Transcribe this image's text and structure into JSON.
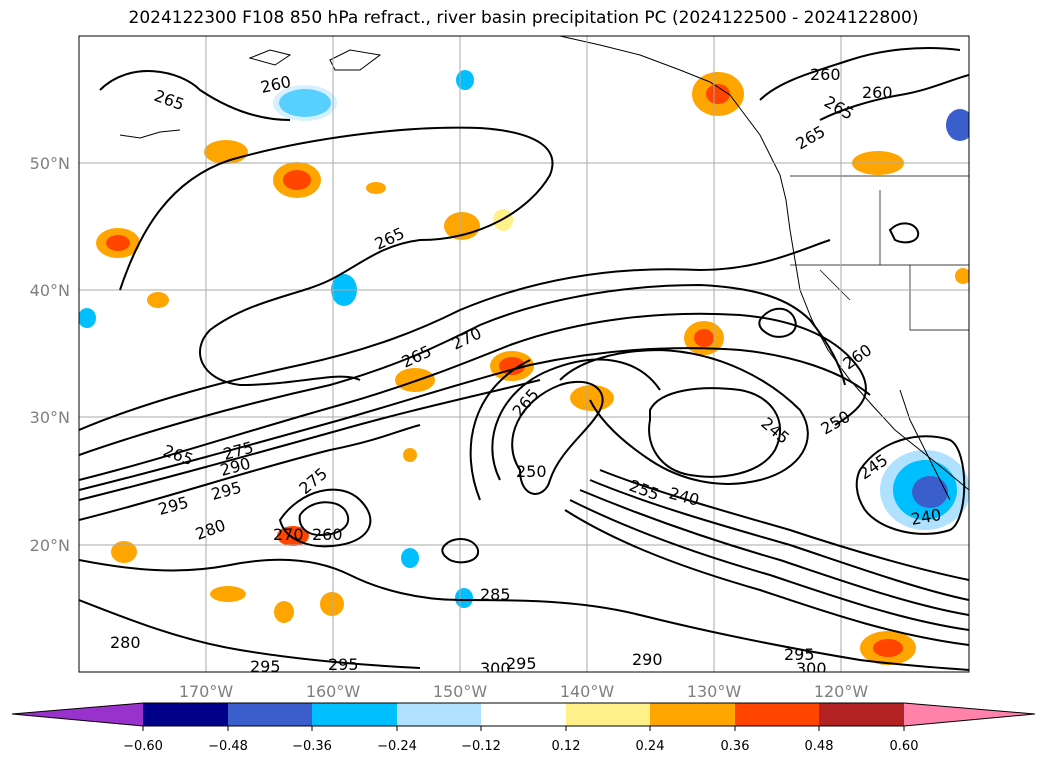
{
  "title": "2024122300 F108 850 hPa refract., river basin precipitation PC (2024122500 - 2024122800)",
  "lat_labels": [
    "50°N",
    "40°N",
    "30°N",
    "20°N"
  ],
  "lon_labels": [
    "170°W",
    "160°W",
    "150°W",
    "140°W",
    "130°W",
    "120°W"
  ],
  "contour_labels": [
    "260",
    "265",
    "260",
    "265",
    "265",
    "260",
    "265",
    "270",
    "265",
    "265",
    "275",
    "290",
    "295",
    "295",
    "280",
    "275",
    "260",
    "270",
    "265",
    "250",
    "255",
    "245",
    "240",
    "250",
    "260",
    "245",
    "240",
    "285",
    "280",
    "295",
    "295",
    "300",
    "295",
    "290",
    "295",
    "300"
  ],
  "colorbar": {
    "ticks": [
      "−0.60",
      "−0.48",
      "−0.36",
      "−0.24",
      "−0.12",
      "0.12",
      "0.24",
      "0.36",
      "0.48",
      "0.60"
    ],
    "colors": [
      "#9932cc",
      "#00008b",
      "#3a5fcd",
      "#00bfff",
      "#b0e2ff",
      "#ffffff",
      "#fff08a",
      "#ffa500",
      "#ff4500",
      "#b22222",
      "#ff82ab"
    ]
  }
}
